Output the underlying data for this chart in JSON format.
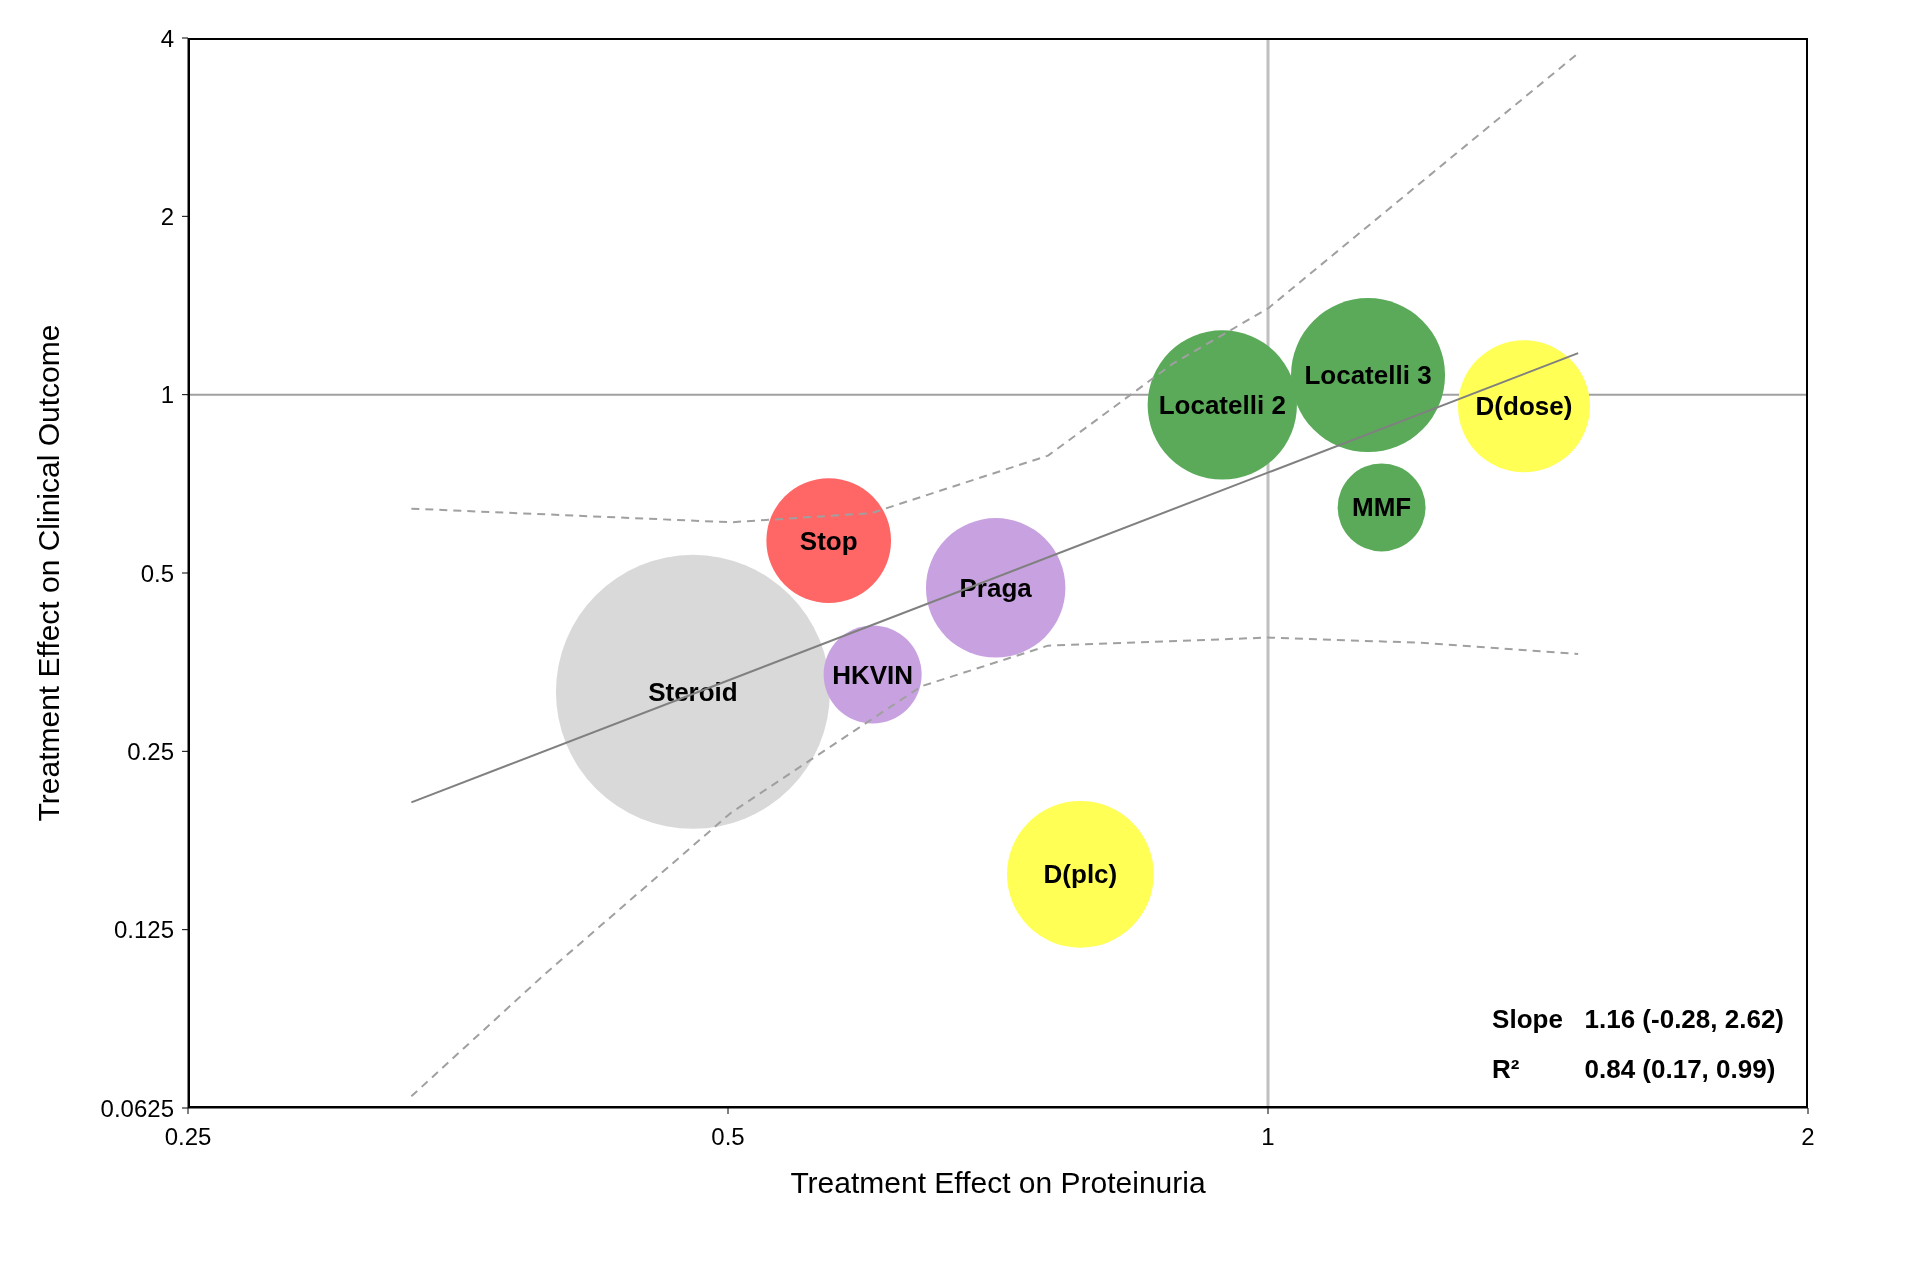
{
  "chart_data": {
    "type": "bubble",
    "xlabel": "Treatment Effect on Proteinuria",
    "ylabel": "Treatment Effect on Clinical Outcome",
    "log": "xy",
    "xlim": [
      0.25,
      2
    ],
    "xticks": [
      0.25,
      0.5,
      1,
      2
    ],
    "ylim": [
      0.0625,
      4
    ],
    "yticks": [
      0.0625,
      0.125,
      0.25,
      0.5,
      1,
      2,
      4
    ],
    "grid": false,
    "legend": false,
    "series": [
      {
        "name": "Steroid",
        "color": "#d9d9d9",
        "x": [
          0.478
        ],
        "values": [
          0.315
        ],
        "sizes": [
          1
        ]
      },
      {
        "name": "Stop",
        "color": "#ff6666",
        "x": [
          0.569
        ],
        "values": [
          0.567
        ],
        "sizes": [
          0.207
        ]
      },
      {
        "name": "Praga",
        "color": "#c8a2e0",
        "x": [
          0.705
        ],
        "values": [
          0.472
        ],
        "sizes": [
          0.259
        ]
      },
      {
        "name": "HKVIN",
        "color": "#c8a2e0",
        "x": [
          0.602
        ],
        "values": [
          0.337
        ],
        "sizes": [
          0.128
        ]
      },
      {
        "name": "D(plc)",
        "color": "#ffff55",
        "x": [
          0.786
        ],
        "values": [
          0.155
        ],
        "sizes": [
          0.287
        ]
      },
      {
        "name": "Locatelli 2",
        "color": "#5aaa5a",
        "x": [
          0.943
        ],
        "values": [
          0.961
        ],
        "sizes": [
          0.297
        ]
      },
      {
        "name": "Locatelli 3",
        "color": "#5aaa5a",
        "x": [
          1.137
        ],
        "values": [
          1.079
        ],
        "sizes": [
          0.316
        ]
      },
      {
        "name": "D(dose)",
        "color": "#ffff55",
        "x": [
          1.389
        ],
        "values": [
          0.956
        ],
        "sizes": [
          0.232
        ]
      },
      {
        "name": "MMF",
        "color": "#5aaa5a",
        "x": [
          1.157
        ],
        "values": [
          0.645
        ],
        "sizes": [
          0.103
        ]
      },
      {
        "type": "line",
        "color": "#808080",
        "line_style": "solid",
        "marker": "none",
        "x": [
          0.333,
          1.489
        ],
        "values": [
          0.205,
          1.175
        ]
      },
      {
        "type": "line",
        "color": "#a0a0a0",
        "line_style": "dashed",
        "marker": "none",
        "x": [
          0.333,
          0.502,
          0.601,
          0.754,
          0.885,
          1.0,
          1.223,
          1.489
        ],
        "values": [
          0.642,
          0.609,
          0.631,
          0.789,
          1.128,
          1.398,
          2.31,
          3.77
        ]
      },
      {
        "type": "line",
        "color": "#a0a0a0",
        "line_style": "dashed",
        "marker": "none",
        "x": [
          0.333,
          0.395,
          0.502,
          0.641,
          0.754,
          1.0,
          1.223,
          1.489
        ],
        "values": [
          0.0654,
          0.105,
          0.197,
          0.322,
          0.377,
          0.389,
          0.381,
          0.365
        ]
      }
    ],
    "ref_lines": [
      {
        "axis": "x",
        "value": 1,
        "color": "#c0c0c0"
      },
      {
        "axis": "y",
        "value": 1,
        "color": "#a0a0a0"
      }
    ],
    "annotations": [
      "Slope   1.16 (-0.28, 2.62)",
      "R²         0.84 (0.17, 0.99)"
    ]
  }
}
